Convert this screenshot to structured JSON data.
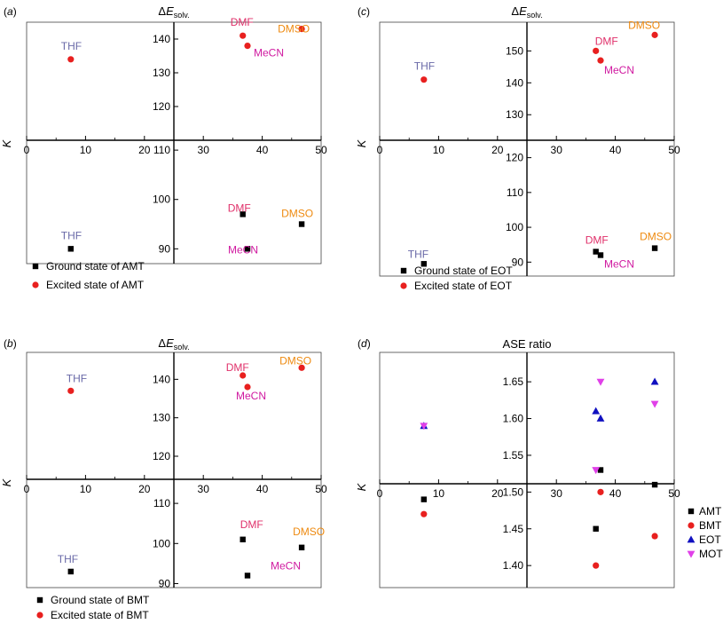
{
  "colors": {
    "ground": "#000000",
    "excited": "#e8201f",
    "eot": "#1010c0",
    "mot": "#e040e8",
    "label_thf": "#6a6aa8",
    "label_dmf": "#e0306a",
    "label_mecn": "#d01aa0",
    "label_dmso": "#ee8a10"
  },
  "chart_data": [
    {
      "id": "a",
      "type": "scatter",
      "panel_label": "(a)",
      "title": "ΔE",
      "title_sub": "solv.",
      "ylabel": "K",
      "xlim": [
        0,
        50
      ],
      "x_ticks": [
        "0",
        "10",
        "20",
        "30",
        "40",
        "50"
      ],
      "top_range": [
        110,
        145
      ],
      "top_ticks": [
        "120",
        "130",
        "140"
      ],
      "bottom_range": [
        87,
        112
      ],
      "bottom_ticks": [
        "90",
        "100",
        "110"
      ],
      "series": [
        {
          "name": "Excited state of AMT",
          "kind": "excited",
          "marker": "circle",
          "region": "top",
          "points": [
            {
              "x": 7.5,
              "y": 134
            },
            {
              "x": 36.7,
              "y": 141
            },
            {
              "x": 37.5,
              "y": 138
            },
            {
              "x": 46.7,
              "y": 143
            }
          ]
        },
        {
          "name": "Ground state of AMT",
          "kind": "ground",
          "marker": "square",
          "region": "bottom",
          "points": [
            {
              "x": 7.5,
              "y": 90
            },
            {
              "x": 36.7,
              "y": 97
            },
            {
              "x": 37.5,
              "y": 90
            },
            {
              "x": 46.7,
              "y": 95
            }
          ]
        }
      ],
      "annotations": [
        {
          "text": "THF",
          "region": "top",
          "x": 7.5,
          "y": 134,
          "dx": -11,
          "dy": -11,
          "color": "label_thf"
        },
        {
          "text": "DMF",
          "region": "top",
          "x": 36.7,
          "y": 141,
          "dx": -14,
          "dy": -11,
          "color": "label_dmf"
        },
        {
          "text": "MeCN",
          "region": "top",
          "x": 37.5,
          "y": 138,
          "dx": 7,
          "dy": 12,
          "color": "label_mecn"
        },
        {
          "text": "DMSO",
          "region": "top",
          "x": 46.7,
          "y": 143,
          "dx": -27,
          "dy": 4,
          "color": "label_dmso"
        },
        {
          "text": "THF",
          "region": "bottom",
          "x": 7.5,
          "y": 90,
          "dx": -11,
          "dy": -11,
          "color": "label_thf"
        },
        {
          "text": "DMF",
          "region": "bottom",
          "x": 36.7,
          "y": 97,
          "dx": -17,
          "dy": -3,
          "color": "label_dmf"
        },
        {
          "text": "MeCN",
          "region": "bottom",
          "x": 37.5,
          "y": 90,
          "dx": -22,
          "dy": 5,
          "color": "label_mecn"
        },
        {
          "text": "DMSO",
          "region": "bottom",
          "x": 46.7,
          "y": 95,
          "dx": -23,
          "dy": -8,
          "color": "label_dmso"
        }
      ]
    },
    {
      "id": "c",
      "type": "scatter",
      "panel_label": "(c)",
      "title": "ΔE",
      "title_sub": "solv.",
      "ylabel": "K",
      "xlim": [
        0,
        50
      ],
      "x_ticks": [
        "0",
        "10",
        "20",
        "30",
        "40",
        "50"
      ],
      "top_range": [
        122,
        159
      ],
      "top_ticks": [
        "130",
        "140",
        "150"
      ],
      "bottom_range": [
        86,
        125
      ],
      "bottom_ticks": [
        "90",
        "100",
        "110",
        "120"
      ],
      "series": [
        {
          "name": "Excited state of EOT",
          "kind": "excited",
          "marker": "circle",
          "region": "top",
          "points": [
            {
              "x": 7.5,
              "y": 141
            },
            {
              "x": 36.7,
              "y": 150
            },
            {
              "x": 37.5,
              "y": 147
            },
            {
              "x": 46.7,
              "y": 155
            }
          ]
        },
        {
          "name": "Ground state of EOT",
          "kind": "ground",
          "marker": "square",
          "region": "bottom",
          "points": [
            {
              "x": 7.5,
              "y": 89.5
            },
            {
              "x": 36.7,
              "y": 93
            },
            {
              "x": 37.5,
              "y": 92
            },
            {
              "x": 46.7,
              "y": 94
            }
          ]
        }
      ],
      "annotations": [
        {
          "text": "THF",
          "region": "top",
          "x": 7.5,
          "y": 141,
          "dx": -11,
          "dy": -11,
          "color": "label_thf"
        },
        {
          "text": "DMF",
          "region": "top",
          "x": 36.7,
          "y": 150,
          "dx": -1,
          "dy": -7,
          "color": "label_dmf"
        },
        {
          "text": "MeCN",
          "region": "top",
          "x": 37.5,
          "y": 147,
          "dx": 4,
          "dy": 15,
          "color": "label_mecn"
        },
        {
          "text": "DMSO",
          "region": "top",
          "x": 46.7,
          "y": 155,
          "dx": -30,
          "dy": -7,
          "color": "label_dmso"
        },
        {
          "text": "THF",
          "region": "bottom",
          "x": 7.5,
          "y": 89.5,
          "dx": -18,
          "dy": -7,
          "color": "label_thf"
        },
        {
          "text": "DMF",
          "region": "bottom",
          "x": 36.7,
          "y": 93,
          "dx": -12,
          "dy": -9,
          "color": "label_dmf"
        },
        {
          "text": "MeCN",
          "region": "bottom",
          "x": 37.5,
          "y": 92,
          "dx": 4,
          "dy": 14,
          "color": "label_mecn"
        },
        {
          "text": "DMSO",
          "region": "bottom",
          "x": 46.7,
          "y": 94,
          "dx": -17,
          "dy": -9,
          "color": "label_dmso"
        }
      ]
    },
    {
      "id": "b",
      "type": "scatter",
      "panel_label": "(b)",
      "title": "ΔE",
      "title_sub": "solv.",
      "ylabel": "K",
      "xlim": [
        0,
        50
      ],
      "x_ticks": [
        "0",
        "10",
        "20",
        "30",
        "40",
        "50"
      ],
      "top_range": [
        114,
        147
      ],
      "top_ticks": [
        "120",
        "130",
        "140"
      ],
      "bottom_range": [
        89,
        116
      ],
      "bottom_ticks": [
        "90",
        "100",
        "110"
      ],
      "series": [
        {
          "name": "Excited state of BMT",
          "kind": "excited",
          "marker": "circle",
          "region": "top",
          "points": [
            {
              "x": 7.5,
              "y": 137
            },
            {
              "x": 36.7,
              "y": 141
            },
            {
              "x": 37.5,
              "y": 138
            },
            {
              "x": 46.7,
              "y": 143
            }
          ]
        },
        {
          "name": "Ground state of BMT",
          "kind": "ground",
          "marker": "square",
          "region": "bottom",
          "points": [
            {
              "x": 7.5,
              "y": 93
            },
            {
              "x": 36.7,
              "y": 101
            },
            {
              "x": 37.5,
              "y": 92
            },
            {
              "x": 46.7,
              "y": 99
            }
          ]
        }
      ],
      "annotations": [
        {
          "text": "THF",
          "region": "top",
          "x": 7.5,
          "y": 137,
          "dx": -5,
          "dy": -10,
          "color": "label_thf"
        },
        {
          "text": "DMF",
          "region": "top",
          "x": 36.7,
          "y": 141,
          "dx": -19,
          "dy": -5,
          "color": "label_dmf"
        },
        {
          "text": "MeCN",
          "region": "top",
          "x": 37.5,
          "y": 138,
          "dx": -13,
          "dy": 14,
          "color": "label_mecn"
        },
        {
          "text": "DMSO",
          "region": "top",
          "x": 46.7,
          "y": 143,
          "dx": -25,
          "dy": -4,
          "color": "label_dmso"
        },
        {
          "text": "THF",
          "region": "bottom",
          "x": 7.5,
          "y": 93,
          "dx": -15,
          "dy": -10,
          "color": "label_thf"
        },
        {
          "text": "DMF",
          "region": "bottom",
          "x": 36.7,
          "y": 101,
          "dx": -3,
          "dy": -13,
          "color": "label_dmf"
        },
        {
          "text": "MeCN",
          "region": "bottom",
          "x": 37.5,
          "y": 92,
          "dx": 26,
          "dy": -7,
          "color": "label_mecn"
        },
        {
          "text": "DMSO",
          "region": "bottom",
          "x": 46.7,
          "y": 99,
          "dx": -10,
          "dy": -14,
          "color": "label_dmso"
        }
      ]
    },
    {
      "id": "d",
      "type": "scatter",
      "panel_label": "(d)",
      "title": "ASE ratio",
      "title_sub": "",
      "ylabel": "K",
      "xlim": [
        0,
        50
      ],
      "x_ticks": [
        "0",
        "10",
        "20",
        "30",
        "40",
        "50"
      ],
      "yrange": [
        1.37,
        1.69
      ],
      "y_ticks": [
        "1.40",
        "1.45",
        "1.50",
        "1.55",
        "1.60",
        "1.65"
      ],
      "x_axis_at": 1.525,
      "series": [
        {
          "name": "AMT",
          "kind": "ground",
          "marker": "square",
          "points": [
            {
              "x": 7.5,
              "y": 1.49
            },
            {
              "x": 36.7,
              "y": 1.45
            },
            {
              "x": 37.5,
              "y": 1.53
            },
            {
              "x": 46.7,
              "y": 1.51
            }
          ]
        },
        {
          "name": "BMT",
          "kind": "excited",
          "marker": "circle",
          "points": [
            {
              "x": 7.5,
              "y": 1.47
            },
            {
              "x": 36.7,
              "y": 1.4
            },
            {
              "x": 37.5,
              "y": 1.5
            },
            {
              "x": 46.7,
              "y": 1.44
            }
          ]
        },
        {
          "name": "EOT",
          "kind": "eot",
          "marker": "triangle-up",
          "points": [
            {
              "x": 7.5,
              "y": 1.59
            },
            {
              "x": 36.7,
              "y": 1.61
            },
            {
              "x": 37.5,
              "y": 1.6
            },
            {
              "x": 46.7,
              "y": 1.65
            }
          ]
        },
        {
          "name": "MOT",
          "kind": "mot",
          "marker": "triangle-down",
          "points": [
            {
              "x": 7.5,
              "y": 1.59
            },
            {
              "x": 36.7,
              "y": 1.53
            },
            {
              "x": 37.5,
              "y": 1.65
            },
            {
              "x": 46.7,
              "y": 1.62
            }
          ]
        }
      ],
      "annotations": []
    }
  ]
}
